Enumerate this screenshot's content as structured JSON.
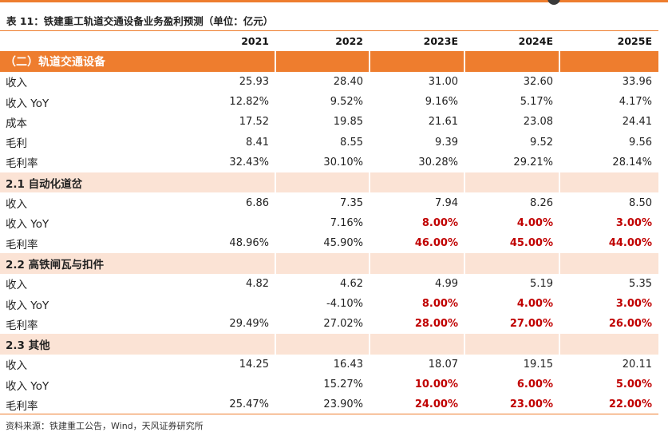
{
  "title": "表 11：铁建重工轨道交通设备业务盈利预测（单位：亿元）",
  "headers": [
    "",
    "2021",
    "2022",
    "2023E",
    "2024E",
    "2025E"
  ],
  "rows": [
    {
      "type": "main-section",
      "label": "（二）轨道交通设备",
      "values": [
        "",
        "",
        "",
        "",
        ""
      ]
    },
    {
      "type": "data",
      "label": "收入",
      "values": [
        "25.93",
        "28.40",
        "31.00",
        "32.60",
        "33.96"
      ]
    },
    {
      "type": "data",
      "label": "收入 YoY",
      "values": [
        "12.82%",
        "9.52%",
        "9.16%",
        "5.17%",
        "4.17%"
      ]
    },
    {
      "type": "data",
      "label": "成本",
      "values": [
        "17.52",
        "19.85",
        "21.61",
        "23.08",
        "24.41"
      ]
    },
    {
      "type": "data",
      "label": "毛利",
      "values": [
        "8.41",
        "8.55",
        "9.39",
        "9.52",
        "9.56"
      ]
    },
    {
      "type": "data",
      "label": "毛利率",
      "values": [
        "32.43%",
        "30.10%",
        "30.28%",
        "29.21%",
        "28.14%"
      ]
    },
    {
      "type": "sub-section",
      "label": "2.1  自动化道岔",
      "values": [
        "",
        "",
        "",
        "",
        ""
      ]
    },
    {
      "type": "data",
      "label": "收入",
      "values": [
        "6.86",
        "7.35",
        "7.94",
        "8.26",
        "8.50"
      ]
    },
    {
      "type": "data-red",
      "label": "收入 YoY",
      "values": [
        "",
        "7.16%",
        "8.00%",
        "4.00%",
        "3.00%"
      ]
    },
    {
      "type": "data-red",
      "label": "毛利率",
      "values": [
        "48.96%",
        "45.90%",
        "46.00%",
        "45.00%",
        "44.00%"
      ]
    },
    {
      "type": "sub-section",
      "label": "2.2  高铁闸瓦与扣件",
      "values": [
        "",
        "",
        "",
        "",
        ""
      ]
    },
    {
      "type": "data",
      "label": "收入",
      "values": [
        "4.82",
        "4.62",
        "4.99",
        "5.19",
        "5.35"
      ]
    },
    {
      "type": "data-red",
      "label": "收入 YoY",
      "values": [
        "",
        "-4.10%",
        "8.00%",
        "4.00%",
        "3.00%"
      ]
    },
    {
      "type": "data-red",
      "label": "毛利率",
      "values": [
        "29.49%",
        "27.02%",
        "28.00%",
        "27.00%",
        "26.00%"
      ]
    },
    {
      "type": "sub-section",
      "label": "2.3  其他",
      "values": [
        "",
        "",
        "",
        "",
        ""
      ]
    },
    {
      "type": "data",
      "label": "收入",
      "values": [
        "14.25",
        "16.43",
        "18.07",
        "19.15",
        "20.11"
      ]
    },
    {
      "type": "data-red",
      "label": "收入 YoY",
      "values": [
        "",
        "15.27%",
        "10.00%",
        "6.00%",
        "5.00%"
      ]
    },
    {
      "type": "data-red",
      "label": "毛利率",
      "values": [
        "25.47%",
        "23.90%",
        "24.00%",
        "23.00%",
        "22.00%"
      ]
    }
  ],
  "source": "资料来源：铁建重工公告，Wind，天风证券研究所",
  "colors": {
    "accent": "#ee7d2e",
    "subsection_bg": "#fbe3d5",
    "forecast_red": "#c00000"
  }
}
